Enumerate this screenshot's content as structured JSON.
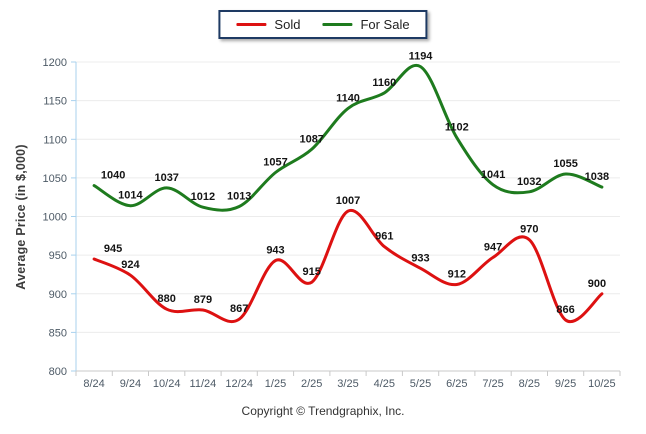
{
  "legend": {
    "items": [
      {
        "label": "Sold",
        "color": "#dd1111"
      },
      {
        "label": "For Sale",
        "color": "#1e7b1e"
      }
    ]
  },
  "y_axis_title": "Average Price (in $,000)",
  "footer": {
    "copyright": "Copyright © Trendgraphix, Inc."
  },
  "chart_data": {
    "type": "line",
    "title": "",
    "xlabel": "",
    "ylabel": "Average Price (in $,000)",
    "categories": [
      "8/24",
      "9/24",
      "10/24",
      "11/24",
      "12/24",
      "1/25",
      "2/25",
      "3/25",
      "4/25",
      "5/25",
      "6/25",
      "7/25",
      "8/25",
      "9/25",
      "10/25"
    ],
    "series": [
      {
        "name": "Sold",
        "color": "#dd1111",
        "values": [
          945,
          924,
          880,
          879,
          867,
          943,
          915,
          1007,
          961,
          933,
          912,
          947,
          970,
          866,
          900
        ]
      },
      {
        "name": "For Sale",
        "color": "#1e7b1e",
        "values": [
          1040,
          1014,
          1037,
          1012,
          1013,
          1057,
          1087,
          1140,
          1160,
          1194,
          1102,
          1041,
          1032,
          1055,
          1038
        ]
      }
    ],
    "ylim": [
      800,
      1200
    ],
    "ytick_step": 50,
    "grid": true,
    "smooth": true,
    "data_labels": true,
    "legend_position": "top-center"
  },
  "axis_style": {
    "y_axis_color": "#a9d2ee",
    "x_axis_color": "#c9c9c9",
    "gridline_color": "#ececec",
    "tick_label_color": "#4d5a66",
    "data_label_color": "#141414"
  }
}
